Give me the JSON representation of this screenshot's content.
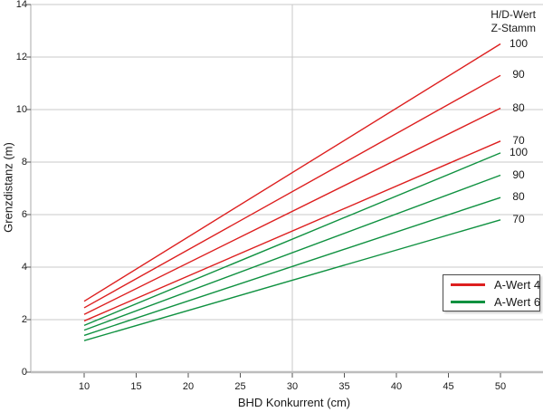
{
  "ui": {
    "background": "#ffffff",
    "colors": {
      "red": "#dd1f1f",
      "green": "#0f9140",
      "grid": "#c9c9c9",
      "axis_y": "#a8a8a8",
      "axis_x": "#bdbdbd",
      "tick": "#555555",
      "text": "#1a1a1a",
      "legend_border": "#4a4a4a"
    }
  },
  "annotations": {
    "hd_header_line1": "H/D-Wert",
    "hd_header_line2": "Z-Stamm"
  },
  "legend": {
    "items": [
      {
        "label": "A-Wert 4",
        "color": "#dd1f1f"
      },
      {
        "label": "A-Wert 6",
        "color": "#0f9140"
      }
    ]
  },
  "chart_data": {
    "type": "line",
    "xlabel": "BHD Konkurrent (cm)",
    "ylabel": "Grenzdistanz (m)",
    "xlim": [
      5,
      54
    ],
    "ylim": [
      0,
      14
    ],
    "x_ticks": [
      10,
      15,
      20,
      25,
      30,
      35,
      40,
      45,
      50
    ],
    "y_ticks": [
      0,
      2,
      4,
      6,
      8,
      10,
      12,
      14
    ],
    "grid": "horizontal",
    "reference_line_x": 30,
    "legend_position": "lower right",
    "line_label_header": [
      "H/D-Wert",
      "Z-Stamm"
    ],
    "series": [
      {
        "name": "A-Wert 4, H/D 100",
        "group": "A-Wert 4",
        "hd": 100,
        "color": "#dd1f1f",
        "x": [
          10,
          50
        ],
        "y": [
          2.7,
          12.5
        ]
      },
      {
        "name": "A-Wert 4, H/D 90",
        "group": "A-Wert 4",
        "hd": 90,
        "color": "#dd1f1f",
        "x": [
          10,
          50
        ],
        "y": [
          2.45,
          11.3
        ]
      },
      {
        "name": "A-Wert 4, H/D 80",
        "group": "A-Wert 4",
        "hd": 80,
        "color": "#dd1f1f",
        "x": [
          10,
          50
        ],
        "y": [
          2.2,
          10.05
        ]
      },
      {
        "name": "A-Wert 4, H/D 70",
        "group": "A-Wert 4",
        "hd": 70,
        "color": "#dd1f1f",
        "x": [
          10,
          50
        ],
        "y": [
          1.95,
          8.8
        ]
      },
      {
        "name": "A-Wert 6, H/D 100",
        "group": "A-Wert 6",
        "hd": 100,
        "color": "#0f9140",
        "x": [
          10,
          50
        ],
        "y": [
          1.78,
          8.35
        ]
      },
      {
        "name": "A-Wert 6, H/D 90",
        "group": "A-Wert 6",
        "hd": 90,
        "color": "#0f9140",
        "x": [
          10,
          50
        ],
        "y": [
          1.6,
          7.5
        ]
      },
      {
        "name": "A-Wert 6, H/D 80",
        "group": "A-Wert 6",
        "hd": 80,
        "color": "#0f9140",
        "x": [
          10,
          50
        ],
        "y": [
          1.4,
          6.65
        ]
      },
      {
        "name": "A-Wert 6, H/D 70",
        "group": "A-Wert 6",
        "hd": 70,
        "color": "#0f9140",
        "x": [
          10,
          50
        ],
        "y": [
          1.2,
          5.8
        ]
      }
    ]
  }
}
